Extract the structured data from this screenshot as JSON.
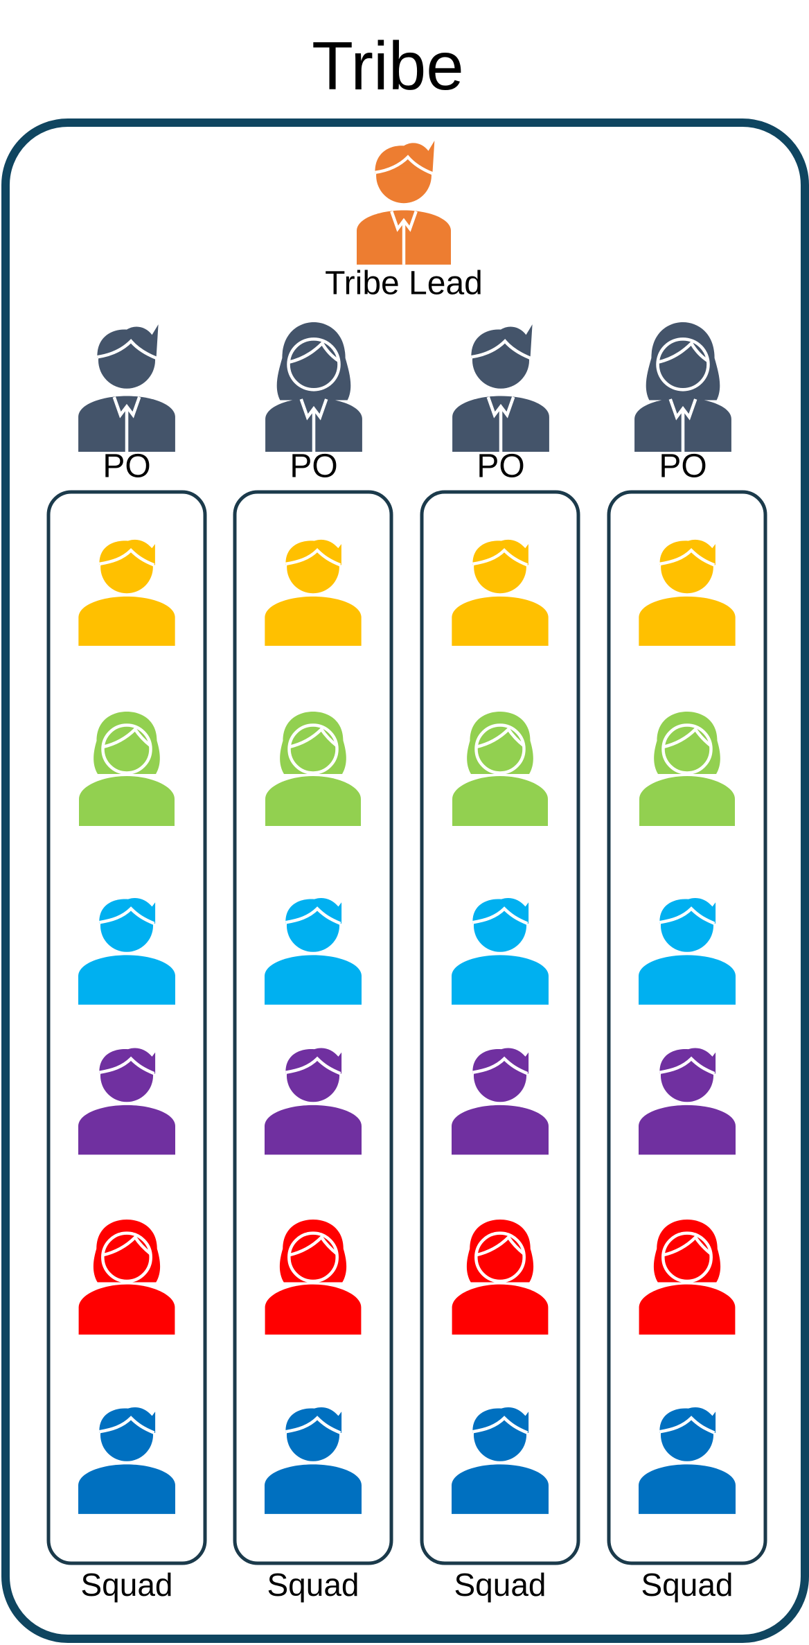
{
  "title": "Tribe",
  "tribe_lead": {
    "label": "Tribe Lead"
  },
  "squads": [
    {
      "po_label": "PO",
      "label": "Squad"
    },
    {
      "po_label": "PO",
      "label": "Squad"
    },
    {
      "po_label": "PO",
      "label": "Squad"
    },
    {
      "po_label": "PO",
      "label": "Squad"
    }
  ]
}
